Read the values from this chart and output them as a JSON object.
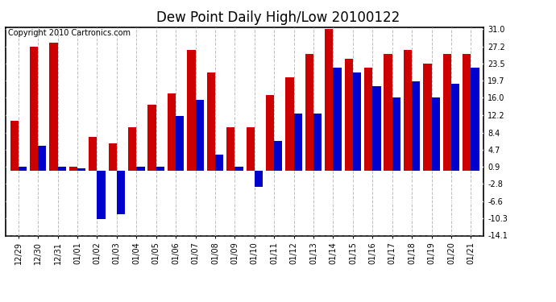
{
  "title": "Dew Point Daily High/Low 20100122",
  "copyright": "Copyright 2010 Cartronics.com",
  "dates": [
    "12/29",
    "12/30",
    "12/31",
    "01/01",
    "01/02",
    "01/03",
    "01/04",
    "01/05",
    "01/06",
    "01/07",
    "01/08",
    "01/09",
    "01/10",
    "01/11",
    "01/12",
    "01/13",
    "01/14",
    "01/15",
    "01/16",
    "01/17",
    "01/18",
    "01/19",
    "01/20",
    "01/21"
  ],
  "highs": [
    11.0,
    27.2,
    28.0,
    0.9,
    7.5,
    6.0,
    9.5,
    14.5,
    17.0,
    26.5,
    21.5,
    9.5,
    9.5,
    16.5,
    20.5,
    25.5,
    31.0,
    24.5,
    22.5,
    25.5,
    26.5,
    23.5,
    25.5,
    25.5
  ],
  "lows": [
    0.9,
    5.5,
    0.9,
    0.5,
    -10.5,
    -9.5,
    0.9,
    0.9,
    12.0,
    15.5,
    3.5,
    0.9,
    -3.5,
    6.5,
    12.5,
    12.5,
    22.5,
    21.5,
    18.5,
    16.0,
    19.5,
    16.0,
    19.0,
    22.5
  ],
  "high_color": "#cc0000",
  "low_color": "#0000cc",
  "background_color": "#ffffff",
  "grid_color_h": "#ffffff",
  "grid_color_v": "#bbbbbb",
  "ylim_min": -14.1,
  "ylim_max": 31.4,
  "ytick_vals": [
    -14.1,
    -10.3,
    -6.6,
    -2.8,
    0.9,
    4.7,
    8.4,
    12.2,
    16.0,
    19.7,
    23.5,
    27.2,
    31.0
  ],
  "ytick_labels": [
    "-14.1",
    "-10.3",
    "-6.6",
    "-2.8",
    "0.9",
    "4.7",
    "8.4",
    "12.2",
    "16.0",
    "19.7",
    "23.5",
    "27.2",
    "31.0"
  ],
  "bar_width": 0.42,
  "title_fontsize": 12,
  "tick_fontsize": 7,
  "copyright_fontsize": 7
}
